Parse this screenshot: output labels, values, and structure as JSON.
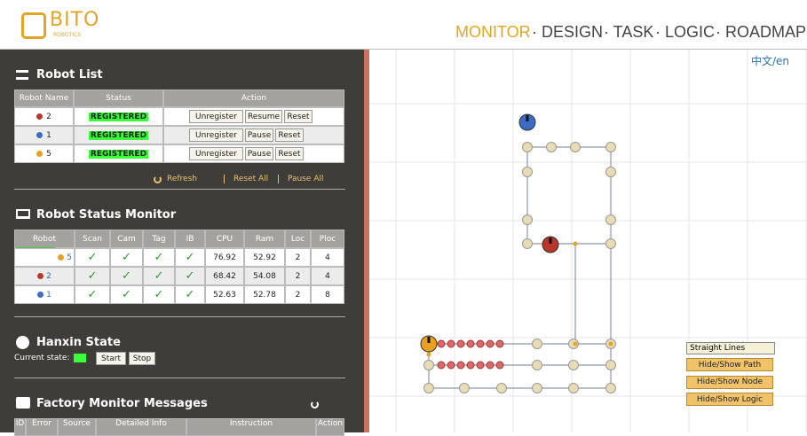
{
  "header": {
    "logo": "BITO",
    "logo_sub": "ROBOTICS",
    "nav": [
      "MONITOR",
      "· DESIGN",
      "· TASK",
      "· LOGIC",
      "· ROADMAP"
    ],
    "language": "中文/en"
  },
  "robot_list": {
    "title": "Robot List",
    "columns": [
      "Robot Name",
      "Status",
      "Action"
    ],
    "rows": [
      {
        "name": "2",
        "color": "#b8362a",
        "status": "REGISTERED",
        "actions": [
          "Unregister",
          "Resume",
          "Reset"
        ]
      },
      {
        "name": "1",
        "color": "#3a6cc6",
        "status": "REGISTERED",
        "actions": [
          "Unregister",
          "Pause",
          "Reset"
        ]
      },
      {
        "name": "5",
        "color": "#e8a020",
        "status": "REGISTERED",
        "actions": [
          "Unregister",
          "Pause",
          "Reset"
        ]
      }
    ],
    "links": [
      "Refresh",
      "Reset All",
      "Pause All"
    ]
  },
  "status_monitor": {
    "title": "Robot Status Monitor",
    "columns": [
      "Robot",
      "Scan",
      "Cam",
      "Tag",
      "IB",
      "CPU",
      "Ram",
      "Loc",
      "Ploc"
    ],
    "rows": [
      {
        "robot": "5",
        "color": "#e8a020",
        "cells": [
          "✓",
          "✓",
          "✓",
          "✓",
          "76.92",
          "52.92",
          "2",
          "4"
        ]
      },
      {
        "robot": "2",
        "color": "#b8362a",
        "cells": [
          "✓",
          "✓",
          "✓",
          "✓",
          "68.42",
          "54.08",
          "2",
          "4"
        ]
      },
      {
        "robot": "1",
        "color": "#3a6cc6",
        "cells": [
          "✓",
          "✓",
          "✓",
          "✓",
          "52.63",
          "52.78",
          "2",
          "8"
        ]
      }
    ]
  },
  "hanxin": {
    "title": "Hanxin State",
    "current_label": "Current state:",
    "buttons": [
      "Start",
      "Stop"
    ]
  },
  "messages": {
    "title": "Factory Monitor Messages",
    "columns": [
      "ID",
      "Error",
      "Source",
      "Detailed Info",
      "Instruction",
      "Action"
    ]
  },
  "map_controls": {
    "line_mode": "Straight Lines",
    "buttons": [
      "Hide/Show Path",
      "Hide/Show Node",
      "Hide/Show Logic"
    ]
  }
}
